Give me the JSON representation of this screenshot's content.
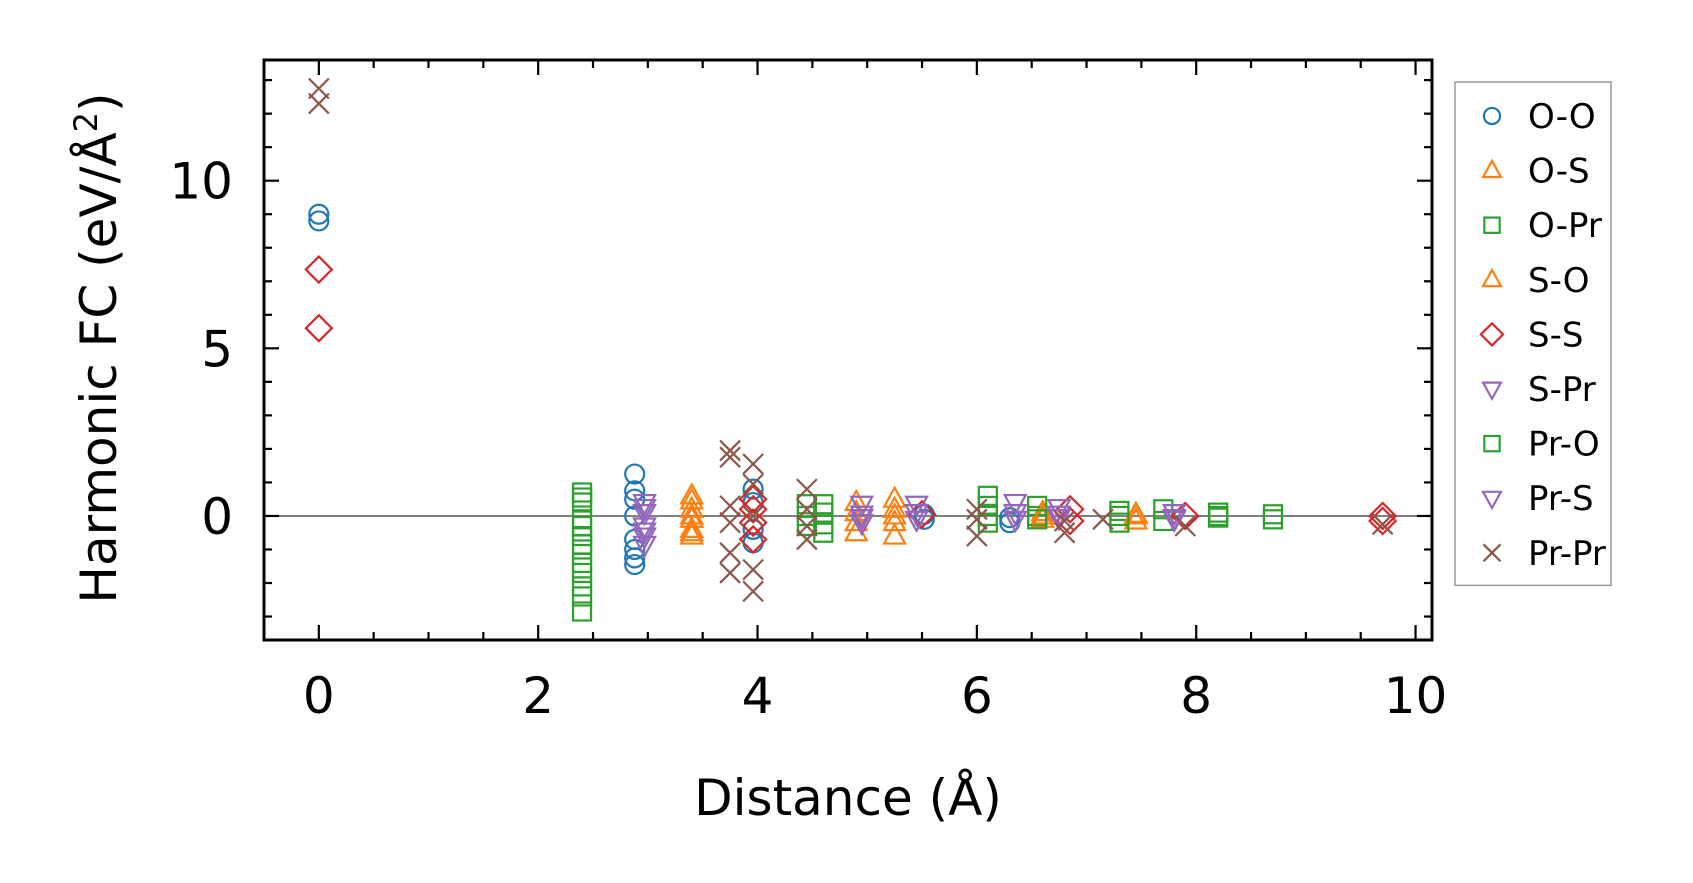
{
  "chart_data": {
    "type": "scatter",
    "xlabel": "Distance (Å)",
    "ylabel": "Harmonic FC (eV/Å",
    "ylabel_sup": "2",
    "ylabel_close": ")",
    "xlim": [
      -0.5,
      10.15
    ],
    "ylim": [
      -3.7,
      13.6
    ],
    "xticks": [
      0,
      2,
      4,
      6,
      8,
      10
    ],
    "xtick_labels": [
      "0",
      "2",
      "4",
      "6",
      "8",
      "10"
    ],
    "yticks": [
      0,
      5,
      10
    ],
    "ytick_labels": [
      "0",
      "5",
      "10"
    ],
    "reference_line_y": 0,
    "legend_position": "right",
    "series": [
      {
        "name": "O-O",
        "marker": "circle",
        "color": "#1f77b4",
        "points": [
          [
            0,
            9.0
          ],
          [
            0,
            8.8
          ],
          [
            2.88,
            1.25
          ],
          [
            2.88,
            0.75
          ],
          [
            2.88,
            0.5
          ],
          [
            2.88,
            0.0
          ],
          [
            2.88,
            -0.7
          ],
          [
            2.88,
            -1.0
          ],
          [
            2.88,
            -1.25
          ],
          [
            2.88,
            -1.45
          ],
          [
            3.96,
            0.8
          ],
          [
            3.96,
            0.4
          ],
          [
            3.96,
            -0.4
          ],
          [
            3.96,
            -0.8
          ],
          [
            5.52,
            0.05
          ],
          [
            5.52,
            -0.1
          ],
          [
            6.3,
            -0.05
          ],
          [
            6.3,
            -0.2
          ]
        ]
      },
      {
        "name": "O-S",
        "marker": "triangle-up",
        "color": "#ff7f0e",
        "points": [
          [
            3.4,
            0.6
          ],
          [
            3.4,
            0.2
          ],
          [
            3.4,
            -0.1
          ],
          [
            3.4,
            -0.4
          ],
          [
            3.4,
            -0.6
          ],
          [
            4.9,
            0.4
          ],
          [
            4.9,
            -0.2
          ],
          [
            4.9,
            -0.5
          ],
          [
            5.25,
            0.5
          ],
          [
            5.25,
            0.2
          ],
          [
            5.25,
            -0.2
          ],
          [
            5.25,
            -0.6
          ],
          [
            6.6,
            0.1
          ],
          [
            6.6,
            -0.1
          ],
          [
            7.45,
            0.0
          ],
          [
            7.45,
            -0.15
          ]
        ]
      },
      {
        "name": "O-Pr",
        "marker": "square",
        "color": "#2ca02c",
        "points": [
          [
            2.4,
            0.7
          ],
          [
            2.4,
            0.4
          ],
          [
            2.4,
            -0.3
          ],
          [
            2.4,
            -0.6
          ],
          [
            2.4,
            -1.0
          ],
          [
            2.4,
            -1.4
          ],
          [
            2.4,
            -1.7
          ],
          [
            2.4,
            -2.4
          ],
          [
            2.4,
            -2.85
          ],
          [
            4.45,
            0.35
          ],
          [
            4.45,
            0.0
          ],
          [
            4.45,
            -0.3
          ],
          [
            4.6,
            0.35
          ],
          [
            4.6,
            0.1
          ],
          [
            4.6,
            -0.25
          ],
          [
            6.1,
            0.6
          ],
          [
            6.1,
            0.3
          ],
          [
            6.1,
            -0.2
          ],
          [
            6.55,
            0.3
          ],
          [
            6.55,
            0.0
          ],
          [
            7.3,
            0.15
          ],
          [
            7.3,
            -0.2
          ],
          [
            7.7,
            0.2
          ],
          [
            7.7,
            -0.15
          ],
          [
            8.2,
            0.1
          ],
          [
            8.2,
            -0.05
          ],
          [
            8.7,
            0.05
          ],
          [
            8.7,
            -0.1
          ]
        ]
      },
      {
        "name": "S-O",
        "marker": "triangle-up",
        "color": "#ff7f0e",
        "points": [
          [
            3.4,
            0.45
          ],
          [
            3.4,
            0.0
          ],
          [
            3.4,
            -0.5
          ],
          [
            4.9,
            0.1
          ],
          [
            5.25,
            0.0
          ],
          [
            6.6,
            0.0
          ],
          [
            7.45,
            0.05
          ]
        ]
      },
      {
        "name": "S-S",
        "marker": "diamond",
        "color": "#d62728",
        "points": [
          [
            0,
            7.35
          ],
          [
            0,
            5.6
          ],
          [
            3.96,
            0.5
          ],
          [
            3.96,
            0.2
          ],
          [
            3.96,
            -0.2
          ],
          [
            3.96,
            -0.7
          ],
          [
            5.5,
            0.05
          ],
          [
            6.85,
            0.2
          ],
          [
            6.85,
            -0.15
          ],
          [
            7.9,
            0.0
          ],
          [
            9.7,
            0.0
          ],
          [
            9.7,
            -0.15
          ]
        ]
      },
      {
        "name": "S-Pr",
        "marker": "triangle-down",
        "color": "#9467bd",
        "points": [
          [
            2.97,
            0.4
          ],
          [
            2.97,
            0.1
          ],
          [
            2.97,
            -0.3
          ],
          [
            2.97,
            -0.6
          ],
          [
            2.97,
            -0.85
          ],
          [
            4.95,
            0.35
          ],
          [
            4.95,
            0.05
          ],
          [
            4.95,
            -0.2
          ],
          [
            5.45,
            0.35
          ],
          [
            5.45,
            0.1
          ],
          [
            6.35,
            0.4
          ],
          [
            6.35,
            0.1
          ],
          [
            6.75,
            0.25
          ],
          [
            6.75,
            -0.05
          ],
          [
            7.8,
            0.1
          ],
          [
            7.8,
            -0.1
          ]
        ]
      },
      {
        "name": "Pr-O",
        "marker": "square",
        "color": "#2ca02c",
        "points": [
          [
            2.4,
            0.55
          ],
          [
            2.4,
            -0.1
          ],
          [
            2.4,
            -0.85
          ],
          [
            2.4,
            -2.1
          ],
          [
            4.6,
            -0.5
          ],
          [
            6.1,
            0.0
          ],
          [
            6.55,
            -0.1
          ],
          [
            7.3,
            0.0
          ],
          [
            8.2,
            0.0
          ]
        ]
      },
      {
        "name": "Pr-S",
        "marker": "triangle-down",
        "color": "#9467bd",
        "points": [
          [
            2.97,
            0.25
          ],
          [
            2.97,
            -0.45
          ],
          [
            4.95,
            -0.05
          ],
          [
            5.45,
            -0.1
          ],
          [
            6.35,
            -0.1
          ],
          [
            6.75,
            0.05
          ],
          [
            7.8,
            -0.05
          ]
        ]
      },
      {
        "name": "Pr-Pr",
        "marker": "x",
        "color": "#8c564b",
        "points": [
          [
            0,
            12.75
          ],
          [
            0,
            12.3
          ],
          [
            3.75,
            1.95
          ],
          [
            3.75,
            1.75
          ],
          [
            3.75,
            0.3
          ],
          [
            3.75,
            -0.2
          ],
          [
            3.75,
            -1.1
          ],
          [
            3.75,
            -1.7
          ],
          [
            3.96,
            1.55
          ],
          [
            3.96,
            0.95
          ],
          [
            3.96,
            0.0
          ],
          [
            3.96,
            -1.6
          ],
          [
            3.96,
            -2.25
          ],
          [
            4.45,
            0.8
          ],
          [
            4.45,
            0.2
          ],
          [
            4.45,
            -0.3
          ],
          [
            4.45,
            -0.7
          ],
          [
            6.0,
            0.2
          ],
          [
            6.0,
            -0.1
          ],
          [
            6.0,
            -0.6
          ],
          [
            6.8,
            -0.15
          ],
          [
            6.8,
            -0.5
          ],
          [
            7.15,
            -0.1
          ],
          [
            7.9,
            -0.3
          ],
          [
            9.7,
            -0.25
          ]
        ]
      }
    ]
  }
}
